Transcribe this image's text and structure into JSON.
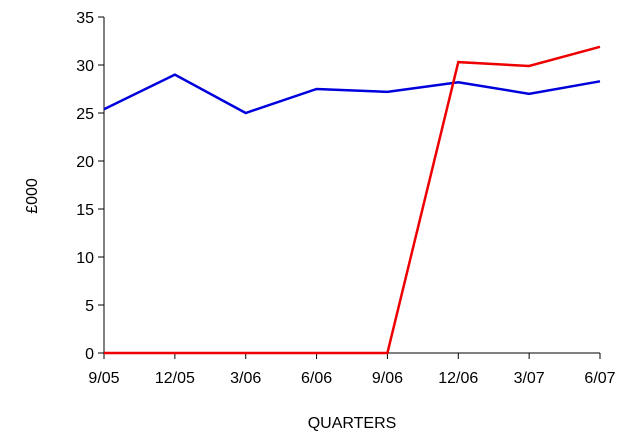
{
  "chart_data": {
    "type": "line",
    "categories": [
      "9/05",
      "12/05",
      "3/06",
      "6/06",
      "9/06",
      "12/06",
      "3/07",
      "6/07"
    ],
    "series": [
      {
        "color": "#0000dd",
        "values": [
          25.4,
          29.0,
          25.0,
          27.5,
          27.2,
          28.2,
          27.0,
          28.3
        ]
      },
      {
        "color": "#ee0000",
        "values": [
          0,
          0,
          0,
          0,
          0,
          30.3,
          29.9,
          31.9
        ]
      }
    ],
    "xlabel": "QUARTERS",
    "ylabel": "£000",
    "ylim": [
      0,
      35
    ],
    "yticks": [
      0,
      5,
      10,
      15,
      20,
      25,
      30,
      35
    ],
    "grid": false
  }
}
